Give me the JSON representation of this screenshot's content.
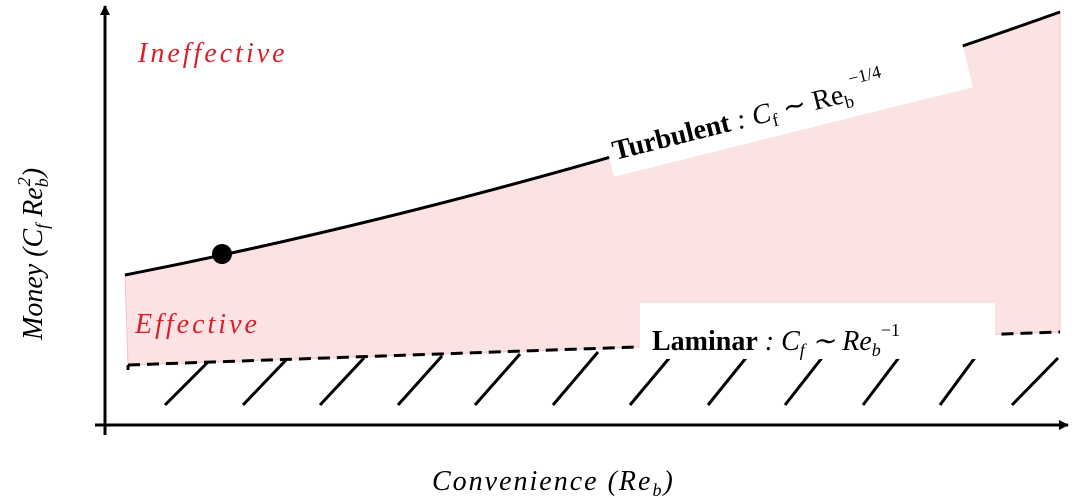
{
  "regions": {
    "upper": "Ineffective",
    "lower": "Effective"
  },
  "turbulent": {
    "name": "Turbulent",
    "relation": ": C",
    "sub1": "f",
    "op": "∼ Re",
    "sub2": "b",
    "exponent": "−1/4"
  },
  "laminar": {
    "name": "Laminar",
    "relation": ": C",
    "sub1": "f",
    "op": "∼ Re",
    "sub2": "b",
    "exponent": "−1"
  },
  "axes": {
    "y": {
      "text": "Money (C",
      "sub1": "f",
      "mid": " Re",
      "sub2": "b",
      "exponent": "2",
      "close": ")"
    },
    "x": {
      "text": "Convenience (Re",
      "sub": "b",
      "close": ")"
    }
  }
}
